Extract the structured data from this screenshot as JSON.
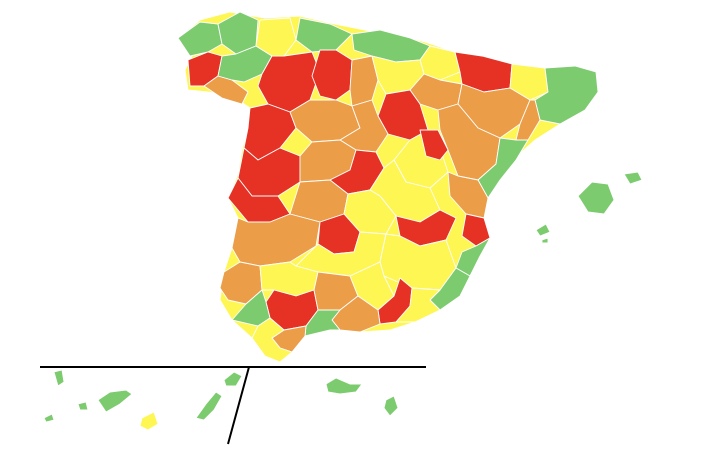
{
  "map": {
    "legend_colors": {
      "green": "#7ccb6e",
      "yellow": "#fef653",
      "orange": "#eb9d48",
      "red": "#e53224"
    },
    "border_color": "#ffffff",
    "inset": "Canary Islands"
  }
}
